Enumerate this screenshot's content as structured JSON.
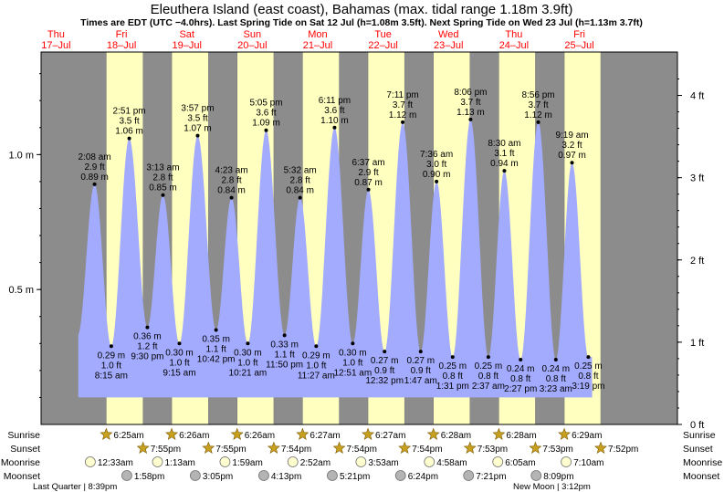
{
  "chart_data": {
    "type": "area",
    "title": "Eleuthera Island (east coast), Bahamas (max. tidal range 1.18m 3.9ft)",
    "subtitle": "Times are EDT (UTC −4.0hrs). Last Spring Tide on Sat 12 Jul (h=1.08m 3.5ft). Next Spring Tide on Wed 23 Jul (h=1.13m 3.7ft)",
    "xlabel": "",
    "ylabel": "",
    "ylim_m": [
      0,
      1.38
    ],
    "ft_per_m": 3.28084,
    "x_range_hours": [
      -17.5,
      216
    ],
    "days": [
      {
        "name": "Thu",
        "date": "17–Jul"
      },
      {
        "name": "Fri",
        "date": "18–Jul"
      },
      {
        "name": "Sat",
        "date": "19–Jul"
      },
      {
        "name": "Sun",
        "date": "20–Jul"
      },
      {
        "name": "Mon",
        "date": "21–Jul"
      },
      {
        "name": "Tue",
        "date": "22–Jul"
      },
      {
        "name": "Wed",
        "date": "23–Jul"
      },
      {
        "name": "Thu",
        "date": "24–Jul"
      },
      {
        "name": "Fri",
        "date": "25–Jul"
      }
    ],
    "y_ticks_m": [
      {
        "value": 0.5,
        "label": "0.5 m"
      },
      {
        "value": 1.0,
        "label": "1.0 m"
      }
    ],
    "y_ticks_ft": [
      {
        "value": 0,
        "label": "0 ft"
      },
      {
        "value": 1,
        "label": "1 ft"
      },
      {
        "value": 2,
        "label": "2 ft"
      },
      {
        "value": 3,
        "label": "3 ft"
      },
      {
        "value": 4,
        "label": "4 ft"
      }
    ],
    "tides": [
      {
        "type": "high",
        "t": 2.133,
        "m": 0.89,
        "time": "2:08 am",
        "ft": "2.9 ft",
        "mlabel": "0.89 m"
      },
      {
        "type": "low",
        "t": 8.25,
        "m": 0.29,
        "time": "8:15 am",
        "ft": "1.0 ft",
        "mlabel": "0.29 m"
      },
      {
        "type": "high",
        "t": 14.85,
        "m": 1.06,
        "time": "2:51 pm",
        "ft": "3.5 ft",
        "mlabel": "1.06 m"
      },
      {
        "type": "low",
        "t": 21.5,
        "m": 0.36,
        "time": "9:30 pm",
        "ft": "1.2 ft",
        "mlabel": "0.36 m"
      },
      {
        "type": "high",
        "t": 27.217,
        "m": 0.85,
        "time": "3:13 am",
        "ft": "2.8 ft",
        "mlabel": "0.85 m"
      },
      {
        "type": "low",
        "t": 33.25,
        "m": 0.3,
        "time": "9:15 am",
        "ft": "1.0 ft",
        "mlabel": "0.30 m"
      },
      {
        "type": "high",
        "t": 39.95,
        "m": 1.07,
        "time": "3:57 pm",
        "ft": "3.5 ft",
        "mlabel": "1.07 m"
      },
      {
        "type": "low",
        "t": 46.7,
        "m": 0.35,
        "time": "10:42 pm",
        "ft": "1.1 ft",
        "mlabel": "0.35 m"
      },
      {
        "type": "high",
        "t": 52.383,
        "m": 0.84,
        "time": "4:23 am",
        "ft": "2.8 ft",
        "mlabel": "0.84 m"
      },
      {
        "type": "low",
        "t": 58.35,
        "m": 0.3,
        "time": "10:21 am",
        "ft": "1.0 ft",
        "mlabel": "0.30 m"
      },
      {
        "type": "high",
        "t": 65.083,
        "m": 1.09,
        "time": "5:05 pm",
        "ft": "3.6 ft",
        "mlabel": "1.09 m"
      },
      {
        "type": "low",
        "t": 71.833,
        "m": 0.33,
        "time": "11:50 pm",
        "ft": "1.1 ft",
        "mlabel": "0.33 m"
      },
      {
        "type": "high",
        "t": 77.533,
        "m": 0.84,
        "time": "5:32 am",
        "ft": "2.8 ft",
        "mlabel": "0.84 m"
      },
      {
        "type": "low",
        "t": 83.45,
        "m": 0.29,
        "time": "11:27 am",
        "ft": "1.0 ft",
        "mlabel": "0.29 m"
      },
      {
        "type": "high",
        "t": 90.183,
        "m": 1.1,
        "time": "6:11 pm",
        "ft": "3.6 ft",
        "mlabel": "1.10 m"
      },
      {
        "type": "low",
        "t": 96.85,
        "m": 0.3,
        "time": "12:51 am",
        "ft": "1.0 ft",
        "mlabel": "0.30 m"
      },
      {
        "type": "high",
        "t": 102.617,
        "m": 0.87,
        "time": "6:37 am",
        "ft": "2.9 ft",
        "mlabel": "0.87 m"
      },
      {
        "type": "low",
        "t": 108.533,
        "m": 0.27,
        "time": "12:32 pm",
        "ft": "0.9 ft",
        "mlabel": "0.27 m"
      },
      {
        "type": "high",
        "t": 115.183,
        "m": 1.12,
        "time": "7:11 pm",
        "ft": "3.7 ft",
        "mlabel": "1.12 m"
      },
      {
        "type": "low",
        "t": 121.783,
        "m": 0.27,
        "time": "1:47 am",
        "ft": "0.9 ft",
        "mlabel": "0.27 m"
      },
      {
        "type": "high",
        "t": 127.6,
        "m": 0.9,
        "time": "7:36 am",
        "ft": "3.0 ft",
        "mlabel": "0.90 m"
      },
      {
        "type": "low",
        "t": 133.517,
        "m": 0.25,
        "time": "1:31 pm",
        "ft": "0.8 ft",
        "mlabel": "0.25 m"
      },
      {
        "type": "high",
        "t": 140.1,
        "m": 1.13,
        "time": "8:06 pm",
        "ft": "3.7 ft",
        "mlabel": "1.13 m"
      },
      {
        "type": "low",
        "t": 146.617,
        "m": 0.25,
        "time": "2:37 am",
        "ft": "0.8 ft",
        "mlabel": "0.25 m"
      },
      {
        "type": "high",
        "t": 152.5,
        "m": 0.94,
        "time": "8:30 am",
        "ft": "3.1 ft",
        "mlabel": "0.94 m"
      },
      {
        "type": "low",
        "t": 158.45,
        "m": 0.24,
        "time": "2:27 pm",
        "ft": "0.8 ft",
        "mlabel": "0.24 m"
      },
      {
        "type": "high",
        "t": 164.933,
        "m": 1.12,
        "time": "8:56 pm",
        "ft": "3.7 ft",
        "mlabel": "1.12 m"
      },
      {
        "type": "low",
        "t": 171.383,
        "m": 0.24,
        "time": "3:23 am",
        "ft": "0.8 ft",
        "mlabel": "0.24 m"
      },
      {
        "type": "high",
        "t": 177.317,
        "m": 0.97,
        "time": "9:19 am",
        "ft": "3.2 ft",
        "mlabel": "0.97 m"
      },
      {
        "type": "low",
        "t": 183.317,
        "m": 0.25,
        "time": "3:19 pm",
        "ft": "0.8 ft",
        "mlabel": "0.25 m"
      }
    ],
    "daylight": [
      {
        "sunrise": 6.417,
        "sunset": 19.917
      },
      {
        "sunrise": 30.433,
        "sunset": 43.917
      },
      {
        "sunrise": 54.433,
        "sunset": 67.9
      },
      {
        "sunrise": 78.45,
        "sunset": 91.9
      },
      {
        "sunrise": 102.45,
        "sunset": 115.9
      },
      {
        "sunrise": 126.467,
        "sunset": 139.883
      },
      {
        "sunrise": 150.467,
        "sunset": 163.883
      },
      {
        "sunrise": 174.483,
        "sunset": 187.867
      }
    ],
    "row_labels": {
      "sunrise": "Sunrise",
      "sunset": "Sunset",
      "moonrise": "Moonrise",
      "moonset": "Moonset"
    },
    "sunrise": [
      {
        "t": 6.417,
        "label": "6:25am"
      },
      {
        "t": 30.433,
        "label": "6:26am"
      },
      {
        "t": 54.433,
        "label": "6:26am"
      },
      {
        "t": 78.45,
        "label": "6:27am"
      },
      {
        "t": 102.45,
        "label": "6:27am"
      },
      {
        "t": 126.467,
        "label": "6:28am"
      },
      {
        "t": 150.467,
        "label": "6:28am"
      },
      {
        "t": 174.483,
        "label": "6:29am"
      }
    ],
    "sunset": [
      {
        "t": 19.917,
        "label": "7:55pm"
      },
      {
        "t": 43.917,
        "label": "7:55pm"
      },
      {
        "t": 67.9,
        "label": "7:54pm"
      },
      {
        "t": 91.9,
        "label": "7:54pm"
      },
      {
        "t": 115.9,
        "label": "7:54pm"
      },
      {
        "t": 139.883,
        "label": "7:53pm"
      },
      {
        "t": 163.883,
        "label": "7:53pm"
      },
      {
        "t": 187.867,
        "label": "7:52pm"
      }
    ],
    "moonrise": [
      {
        "t": 0.55,
        "label": "12:33am"
      },
      {
        "t": 25.217,
        "label": "1:13am"
      },
      {
        "t": 49.983,
        "label": "1:59am"
      },
      {
        "t": 74.867,
        "label": "2:52am"
      },
      {
        "t": 99.883,
        "label": "3:53am"
      },
      {
        "t": 124.967,
        "label": "4:58am"
      },
      {
        "t": 150.083,
        "label": "6:05am"
      },
      {
        "t": 175.167,
        "label": "7:10am"
      }
    ],
    "moonset": [
      {
        "t": 13.967,
        "label": "1:58pm"
      },
      {
        "t": 39.083,
        "label": "3:05pm"
      },
      {
        "t": 64.217,
        "label": "4:13pm"
      },
      {
        "t": 89.35,
        "label": "5:21pm"
      },
      {
        "t": 114.4,
        "label": "6:24pm"
      },
      {
        "t": 139.35,
        "label": "7:21pm"
      },
      {
        "t": 164.15,
        "label": "8:09pm"
      }
    ],
    "moon_phases": [
      {
        "label": "Last Quarter | 8:39pm"
      },
      {
        "label": "New Moon | 3:12pm"
      }
    ]
  },
  "colors": {
    "night": "#8c8c8c",
    "day": "#ffffc0",
    "water": "#a3abff",
    "frame": "#000000",
    "day_text": "#ff0000",
    "star": "#c8a020",
    "moon_full": "#ffffd0",
    "moon_dark": "#b4b4b4"
  }
}
